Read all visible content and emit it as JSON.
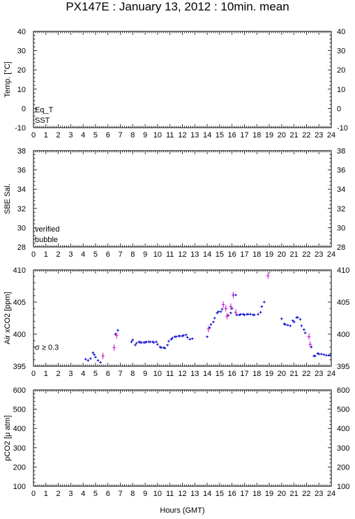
{
  "title": "PX147E : January 13, 2012 : 10min. mean",
  "xlabel": "Hours (GMT)",
  "x_ticks": [
    "0",
    "1",
    "2",
    "3",
    "4",
    "5",
    "6",
    "7",
    "8",
    "9",
    "10",
    "11",
    "12",
    "13",
    "14",
    "15",
    "16",
    "17",
    "18",
    "19",
    "20",
    "21",
    "22",
    "23",
    "24"
  ],
  "colors": {
    "verified": "#0000cc",
    "flagged": "#cc00cc",
    "eq_t": "#cc0000",
    "sst": "#0000cc",
    "frame": "#000000"
  },
  "panels": [
    {
      "id": "temp",
      "ylabel": "Temp. [°C]",
      "ylim": [
        -10,
        40
      ],
      "yticks": [
        -10,
        0,
        10,
        20,
        30,
        40
      ],
      "legend": [
        {
          "label": "Eq_T",
          "color": "#cc0000"
        },
        {
          "label": "SST",
          "color": "#0000cc"
        }
      ]
    },
    {
      "id": "sal",
      "ylabel": "SBE Sal.",
      "ylim": [
        28,
        38
      ],
      "yticks": [
        28,
        30,
        32,
        34,
        36,
        38
      ],
      "legend": [
        {
          "label": "verified",
          "color": "#0000cc"
        },
        {
          "label": "bubble",
          "color": "#cc00cc"
        }
      ]
    },
    {
      "id": "xco2",
      "ylabel": "Air xCO2 [ppm]",
      "ylim": [
        395,
        410
      ],
      "yticks": [
        395,
        400,
        405,
        410
      ],
      "legend": [
        {
          "label": "σ ≥ 0.3",
          "color": "#cc00cc"
        }
      ]
    },
    {
      "id": "pco2",
      "ylabel": "pCO2 [μ atm]",
      "ylim": [
        100,
        600
      ],
      "yticks": [
        100,
        200,
        300,
        400,
        500,
        600
      ],
      "legend": []
    }
  ],
  "chart_data": {
    "type": "scatter",
    "title": "PX147E : January 13, 2012 : 10min. mean",
    "xlabel": "Hours (GMT)",
    "xlim": [
      0,
      24
    ],
    "panel": "Air xCO2 [ppm]",
    "ylim": [
      395,
      410
    ],
    "series": [
      {
        "name": "verified",
        "color": "#0000cc",
        "x": [
          4.2,
          4.4,
          4.6,
          4.8,
          4.9,
          5.0,
          5.2,
          5.4,
          6.6,
          6.8,
          7.9,
          8.0,
          8.2,
          8.3,
          8.5,
          8.6,
          8.7,
          8.9,
          9.0,
          9.1,
          9.3,
          9.4,
          9.6,
          9.7,
          9.9,
          10.0,
          10.2,
          10.3,
          10.5,
          10.6,
          10.8,
          10.9,
          11.1,
          11.2,
          11.4,
          11.5,
          11.7,
          11.8,
          12.0,
          12.1,
          12.3,
          12.4,
          12.6,
          12.8,
          14.0,
          14.2,
          14.3,
          14.5,
          14.6,
          14.8,
          14.9,
          15.1,
          15.2,
          15.7,
          15.9,
          16.0,
          16.1,
          16.3,
          16.4,
          16.6,
          16.7,
          16.9,
          17.0,
          17.2,
          17.3,
          17.5,
          17.7,
          17.8,
          18.1,
          18.3,
          18.4,
          18.6,
          20.0,
          20.2,
          20.3,
          20.5,
          20.7,
          20.9,
          21.0,
          21.2,
          21.3,
          21.5,
          21.6,
          21.8,
          21.9,
          22.4,
          22.6,
          22.7,
          22.9,
          23.0,
          23.2,
          23.4,
          23.6,
          23.8,
          23.9
        ],
        "y": [
          396.1,
          395.9,
          396.2,
          397.1,
          396.8,
          396.4,
          395.9,
          395.6,
          400.0,
          400.6,
          398.8,
          399.1,
          398.3,
          398.6,
          398.8,
          398.7,
          398.7,
          398.7,
          398.7,
          398.8,
          398.8,
          398.8,
          398.8,
          398.7,
          398.8,
          398.4,
          398.0,
          397.9,
          397.9,
          397.8,
          398.3,
          398.9,
          399.2,
          399.4,
          399.6,
          399.6,
          399.7,
          399.7,
          399.7,
          399.8,
          399.9,
          399.5,
          399.2,
          399.3,
          399.6,
          401.0,
          401.5,
          401.9,
          402.5,
          403.3,
          403.5,
          403.5,
          403.9,
          402.9,
          403.3,
          404.0,
          406.1,
          406.1,
          403.0,
          403.0,
          403.1,
          403.1,
          403.0,
          403.1,
          403.1,
          403.1,
          403.0,
          403.0,
          403.1,
          403.4,
          404.3,
          405.0,
          402.4,
          401.6,
          401.5,
          401.4,
          401.3,
          402.1,
          401.9,
          402.6,
          402.6,
          402.3,
          401.3,
          400.7,
          400.2,
          398.0,
          396.6,
          396.6,
          397.0,
          396.9,
          396.9,
          396.8,
          396.7,
          396.7,
          396.7
        ]
      },
      {
        "name": "σ ≥ 0.3",
        "color": "#cc00cc",
        "x": [
          5.6,
          6.5,
          6.7,
          14.1,
          15.3,
          15.5,
          15.6,
          15.9,
          16.1,
          16.3,
          18.9,
          22.2,
          22.3
        ],
        "y": [
          396.6,
          397.9,
          399.8,
          400.8,
          404.6,
          404.0,
          402.8,
          404.3,
          406.1,
          403.4,
          409.1,
          399.6,
          398.4
        ]
      }
    ]
  }
}
